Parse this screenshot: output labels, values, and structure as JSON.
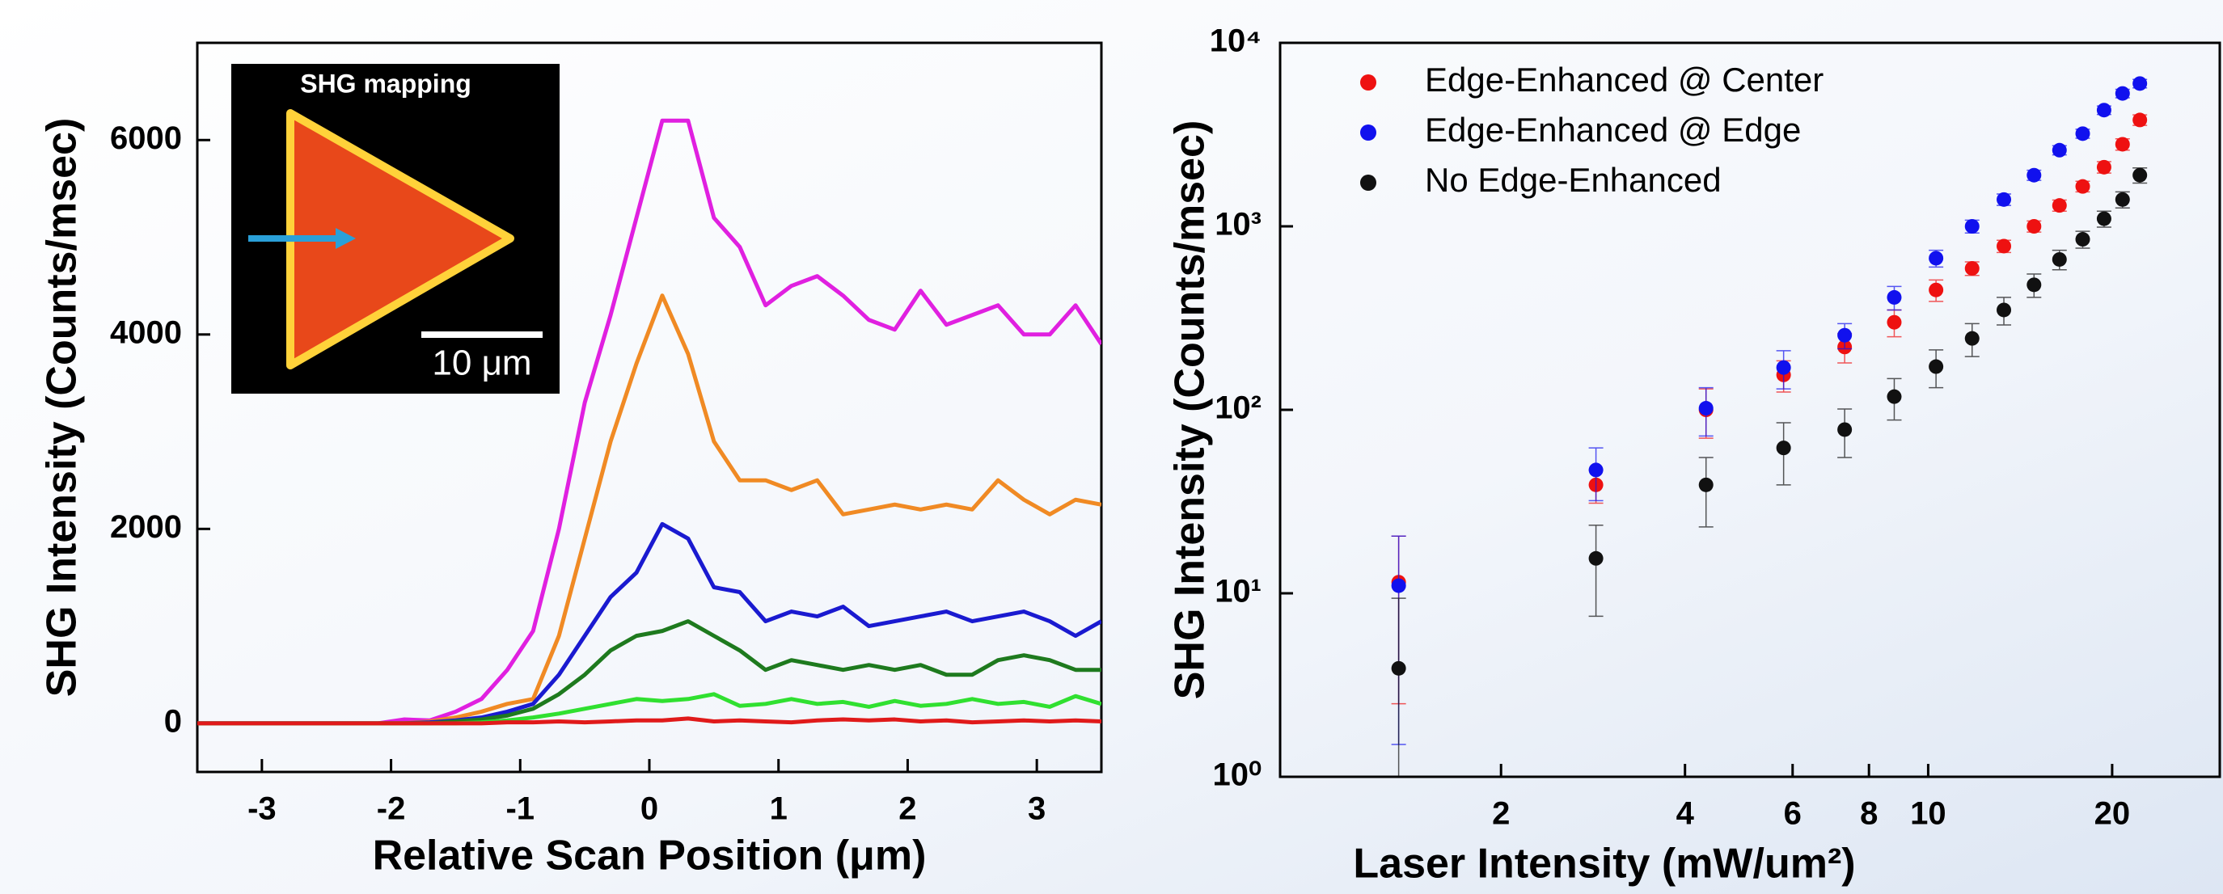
{
  "chart_data": [
    {
      "type": "line",
      "xlabel": "Relative Scan Position (μm)",
      "ylabel": "SHG Intensity (Counts/msec)",
      "annotations": [
        "SHG mapping",
        "10 μm"
      ],
      "x": [
        -3.5,
        -3.3,
        -3.1,
        -2.9,
        -2.7,
        -2.5,
        -2.3,
        -2.1,
        -1.9,
        -1.7,
        -1.5,
        -1.3,
        -1.1,
        -0.9,
        -0.7,
        -0.5,
        -0.3,
        -0.1,
        0.1,
        0.3,
        0.5,
        0.7,
        0.9,
        1.1,
        1.3,
        1.5,
        1.7,
        1.9,
        2.1,
        2.3,
        2.5,
        2.7,
        2.9,
        3.1,
        3.3,
        3.5
      ],
      "series": [
        {
          "color": "#e020e0",
          "values": [
            0,
            0,
            0,
            0,
            0,
            0,
            0,
            0,
            40,
            30,
            120,
            250,
            550,
            950,
            2000,
            3300,
            4200,
            5200,
            6200,
            6200,
            5200,
            4900,
            4300,
            4500,
            4600,
            4400,
            4150,
            4050,
            4450,
            4100,
            4200,
            4300,
            4000,
            4000,
            4300,
            3900
          ]
        },
        {
          "color": "#f08a24",
          "values": [
            0,
            0,
            0,
            0,
            0,
            0,
            0,
            0,
            0,
            20,
            60,
            120,
            200,
            250,
            900,
            1900,
            2900,
            3700,
            4400,
            3800,
            2900,
            2500,
            2500,
            2400,
            2500,
            2150,
            2200,
            2250,
            2200,
            2250,
            2200,
            2500,
            2300,
            2150,
            2300,
            2250
          ]
        },
        {
          "color": "#1a1ad0",
          "values": [
            0,
            0,
            0,
            0,
            0,
            0,
            0,
            0,
            0,
            10,
            30,
            60,
            120,
            200,
            500,
            900,
            1300,
            1550,
            2050,
            1900,
            1400,
            1350,
            1050,
            1150,
            1100,
            1200,
            1000,
            1050,
            1100,
            1150,
            1050,
            1100,
            1150,
            1050,
            900,
            1050
          ]
        },
        {
          "color": "#1e7a1e",
          "values": [
            0,
            0,
            0,
            0,
            0,
            0,
            0,
            0,
            0,
            0,
            20,
            40,
            80,
            150,
            300,
            500,
            750,
            900,
            950,
            1050,
            900,
            750,
            550,
            650,
            600,
            550,
            600,
            550,
            600,
            500,
            500,
            650,
            700,
            650,
            550,
            550
          ]
        },
        {
          "color": "#30e030",
          "values": [
            0,
            0,
            0,
            0,
            0,
            0,
            0,
            0,
            0,
            0,
            0,
            10,
            30,
            60,
            100,
            150,
            200,
            250,
            230,
            250,
            300,
            180,
            200,
            250,
            200,
            220,
            170,
            230,
            180,
            200,
            250,
            200,
            220,
            170,
            280,
            200
          ]
        },
        {
          "color": "#e01a1a",
          "values": [
            0,
            0,
            0,
            0,
            0,
            0,
            0,
            0,
            0,
            0,
            0,
            0,
            10,
            10,
            20,
            10,
            20,
            30,
            30,
            50,
            20,
            30,
            20,
            10,
            30,
            40,
            30,
            40,
            20,
            30,
            10,
            20,
            30,
            20,
            30,
            20
          ]
        }
      ],
      "xlim": [
        -3.5,
        3.5
      ],
      "xticks": [
        -3,
        -2,
        -1,
        0,
        1,
        2,
        3
      ],
      "ylim": [
        -500,
        7000
      ],
      "yticks": [
        0,
        2000,
        4000,
        6000
      ]
    },
    {
      "type": "scatter",
      "xlabel": "Laser Intensity (mW/um²)",
      "ylabel": "SHG Intensity (Counts/msec)",
      "xscale": "log",
      "yscale": "log",
      "legend": "upper left",
      "x": [
        1.36,
        2.86,
        4.33,
        5.8,
        7.3,
        8.8,
        10.3,
        11.8,
        13.3,
        14.9,
        16.4,
        17.9,
        19.4,
        20.8,
        22.2
      ],
      "series": [
        {
          "name": "Edge-Enhanced @ Center",
          "color": "#ee1111",
          "values": [
            11.5,
            39,
            100,
            155,
            220,
            300,
            450,
            590,
            780,
            1000,
            1300,
            1650,
            2100,
            2800,
            3800
          ],
          "errors": [
            9,
            8,
            30,
            30,
            40,
            50,
            60,
            50,
            60,
            70,
            90,
            110,
            150,
            200,
            250
          ]
        },
        {
          "name": "Edge-Enhanced @ Edge",
          "color": "#1111ee",
          "values": [
            11,
            47,
            102,
            170,
            255,
            410,
            670,
            1000,
            1400,
            1900,
            2600,
            3200,
            4300,
            5300,
            6000
          ],
          "errors": [
            9.5,
            15,
            30,
            40,
            40,
            60,
            70,
            80,
            100,
            120,
            150,
            180,
            230,
            280,
            320
          ]
        },
        {
          "name": "No Edge-Enhanced",
          "color": "#111111",
          "values": [
            3.9,
            15.5,
            39,
            62,
            78,
            118,
            172,
            245,
            350,
            480,
            660,
            850,
            1100,
            1400,
            1900
          ],
          "errors": [
            5.5,
            8,
            16,
            23,
            23,
            30,
            40,
            50,
            60,
            70,
            80,
            90,
            110,
            140,
            180
          ]
        }
      ],
      "xlim": [
        0.87,
        30
      ],
      "xticks": [
        2,
        4,
        6,
        8,
        10,
        20
      ],
      "ylim": [
        1,
        10000
      ],
      "yticks": [
        {
          "value": 1,
          "label": "10⁰"
        },
        {
          "value": 10,
          "label": "10¹"
        },
        {
          "value": 100,
          "label": "10²"
        },
        {
          "value": 1000,
          "label": "10³"
        },
        {
          "value": 10000,
          "label": "10⁴"
        }
      ]
    }
  ]
}
